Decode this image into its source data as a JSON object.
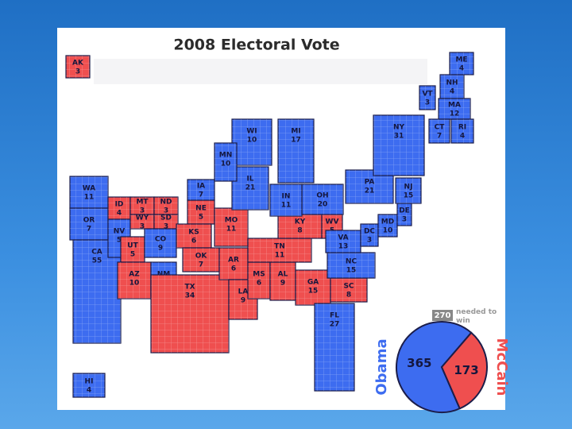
{
  "title": "2008 Electoral Vote",
  "states": [
    {
      "abbr": "AK",
      "votes": 3,
      "color": "#ef4f4f"
    },
    {
      "abbr": "WA",
      "votes": 11,
      "color": "#3d6cf0"
    },
    {
      "abbr": "OR",
      "votes": 7,
      "color": "#3d6cf0"
    },
    {
      "abbr": "CA",
      "votes": 55,
      "color": "#3d6cf0"
    },
    {
      "abbr": "ID",
      "votes": 4,
      "color": "#ef4f4f"
    },
    {
      "abbr": "NV",
      "votes": 5,
      "color": "#3d6cf0"
    },
    {
      "abbr": "MT",
      "votes": 3,
      "color": "#ef4f4f"
    },
    {
      "abbr": "WY",
      "votes": 3,
      "color": "#ef4f4f"
    },
    {
      "abbr": "ND",
      "votes": 3,
      "color": "#ef4f4f"
    },
    {
      "abbr": "SD",
      "votes": 3,
      "color": "#ef4f4f"
    },
    {
      "abbr": "NE",
      "votes": 5,
      "color": "#ef4f4f"
    },
    {
      "abbr": "UT",
      "votes": 5,
      "color": "#ef4f4f"
    },
    {
      "abbr": "CO",
      "votes": 9,
      "color": "#3d6cf0"
    },
    {
      "abbr": "KS",
      "votes": 6,
      "color": "#ef4f4f"
    },
    {
      "abbr": "IA",
      "votes": 7,
      "color": "#3d6cf0"
    },
    {
      "abbr": "MO",
      "votes": 11,
      "color": "#ef4f4f"
    },
    {
      "abbr": "AZ",
      "votes": 10,
      "color": "#ef4f4f"
    },
    {
      "abbr": "NM",
      "votes": 5,
      "color": "#3d6cf0"
    },
    {
      "abbr": "OK",
      "votes": 7,
      "color": "#ef4f4f"
    },
    {
      "abbr": "TX",
      "votes": 34,
      "color": "#ef4f4f"
    },
    {
      "abbr": "AR",
      "votes": 6,
      "color": "#ef4f4f"
    },
    {
      "abbr": "LA",
      "votes": 9,
      "color": "#ef4f4f"
    },
    {
      "abbr": "MS",
      "votes": 6,
      "color": "#ef4f4f"
    },
    {
      "abbr": "AL",
      "votes": 9,
      "color": "#ef4f4f"
    },
    {
      "abbr": "TN",
      "votes": 11,
      "color": "#ef4f4f"
    },
    {
      "abbr": "KY",
      "votes": 8,
      "color": "#ef4f4f"
    },
    {
      "abbr": "WV",
      "votes": 5,
      "color": "#ef4f4f"
    },
    {
      "abbr": "GA",
      "votes": 15,
      "color": "#ef4f4f"
    },
    {
      "abbr": "SC",
      "votes": 8,
      "color": "#ef4f4f"
    },
    {
      "abbr": "NC",
      "votes": 15,
      "color": "#3d6cf0"
    },
    {
      "abbr": "VA",
      "votes": 13,
      "color": "#3d6cf0"
    },
    {
      "abbr": "FL",
      "votes": 27,
      "color": "#3d6cf0"
    },
    {
      "abbr": "DC",
      "votes": 3,
      "color": "#3d6cf0"
    },
    {
      "abbr": "MD",
      "votes": 10,
      "color": "#3d6cf0"
    },
    {
      "abbr": "DE",
      "votes": 3,
      "color": "#3d6cf0"
    },
    {
      "abbr": "NJ",
      "votes": 15,
      "color": "#3d6cf0"
    },
    {
      "abbr": "PA",
      "votes": 21,
      "color": "#3d6cf0"
    },
    {
      "abbr": "OH",
      "votes": 20,
      "color": "#3d6cf0"
    },
    {
      "abbr": "IN",
      "votes": 11,
      "color": "#3d6cf0"
    },
    {
      "abbr": "IL",
      "votes": 21,
      "color": "#3d6cf0"
    },
    {
      "abbr": "MI",
      "votes": 17,
      "color": "#3d6cf0"
    },
    {
      "abbr": "WI",
      "votes": 10,
      "color": "#3d6cf0"
    },
    {
      "abbr": "MN",
      "votes": 10,
      "color": "#3d6cf0"
    },
    {
      "abbr": "NY",
      "votes": 31,
      "color": "#3d6cf0"
    },
    {
      "abbr": "VT",
      "votes": 3,
      "color": "#3d6cf0"
    },
    {
      "abbr": "NH",
      "votes": 4,
      "color": "#3d6cf0"
    },
    {
      "abbr": "ME",
      "votes": 4,
      "color": "#3d6cf0"
    },
    {
      "abbr": "MA",
      "votes": 12,
      "color": "#3d6cf0"
    },
    {
      "abbr": "CT",
      "votes": 7,
      "color": "#3d6cf0"
    },
    {
      "abbr": "RI",
      "votes": 4,
      "color": "#3d6cf0"
    },
    {
      "abbr": "HI",
      "votes": 4,
      "color": "#3d6cf0"
    }
  ],
  "result": {
    "threshold": 270,
    "threshold_text": "needed to win",
    "series": [
      {
        "name": "Obama",
        "value": 365,
        "color": "#3d6cf0"
      },
      {
        "name": "McCain",
        "value": 173,
        "color": "#ef4f4f"
      }
    ]
  }
}
